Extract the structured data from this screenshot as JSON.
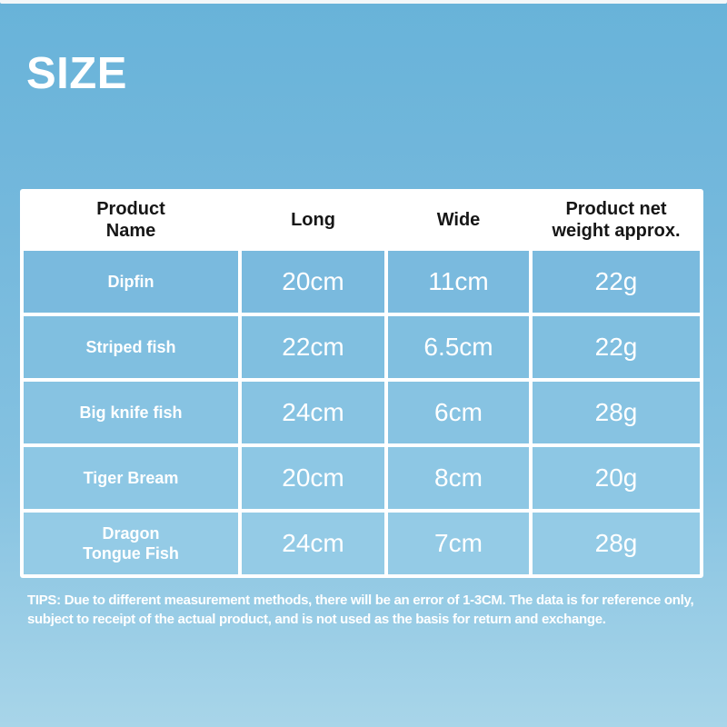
{
  "page": {
    "title": "SIZE"
  },
  "colors": {
    "background_top": "#68b3d9",
    "background_bottom": "#a8d5e9",
    "header_bg": "#ffffff",
    "header_text": "#161616",
    "cell_bg": "#84c1e1",
    "cell_text": "#ffffff",
    "border": "#ffffff"
  },
  "display": {
    "headers": {
      "product_name": "Product\nName",
      "long": "Long",
      "wide": "Wide",
      "weight": "Product net\nweight approx."
    },
    "rows": [
      {
        "name": "Dipfin",
        "long": "20cm",
        "wide": "11cm",
        "weight": "22g"
      },
      {
        "name": "Striped fish",
        "long": "22cm",
        "wide": "6.5cm",
        "weight": "22g"
      },
      {
        "name": "Big knife fish",
        "long": "24cm",
        "wide": "6cm",
        "weight": "28g"
      },
      {
        "name": "Tiger Bream",
        "long": "20cm",
        "wide": "8cm",
        "weight": "20g"
      },
      {
        "name": "Dragon\nTongue Fish",
        "long": "24cm",
        "wide": "7cm",
        "weight": "28g"
      }
    ],
    "tips": "TIPS: Due to different measurement methods, there will be an error of 1-3CM. The data is for reference only, subject to receipt of the actual product, and is not used as the basis for return and exchange."
  },
  "chart_data": {
    "type": "table",
    "title": "SIZE",
    "columns": [
      "Product Name",
      "Long",
      "Wide",
      "Product net weight approx."
    ],
    "rows": [
      [
        "Dipfin",
        "20cm",
        "11cm",
        "22g"
      ],
      [
        "Striped fish",
        "22cm",
        "6.5cm",
        "22g"
      ],
      [
        "Big knife fish",
        "24cm",
        "6cm",
        "28g"
      ],
      [
        "Tiger Bream",
        "20cm",
        "8cm",
        "20g"
      ],
      [
        "Dragon Tongue Fish",
        "24cm",
        "7cm",
        "28g"
      ]
    ],
    "footnote": "TIPS: Due to different measurement methods, there will be an error of 1-3CM. The data is for reference only, subject to receipt of the actual product, and is not used as the basis for return and exchange."
  }
}
